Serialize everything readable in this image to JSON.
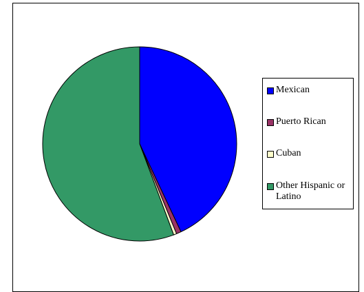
{
  "chart_data": {
    "type": "pie",
    "categories": [
      "Mexican",
      "Puerto Rican",
      "Cuban",
      "Other Hispanic or Latino"
    ],
    "values": [
      43.0,
      0.8,
      0.5,
      55.7
    ],
    "colors": [
      "#0000ff",
      "#993366",
      "#ffffcc",
      "#339966"
    ],
    "legend_position": "right",
    "title": ""
  }
}
